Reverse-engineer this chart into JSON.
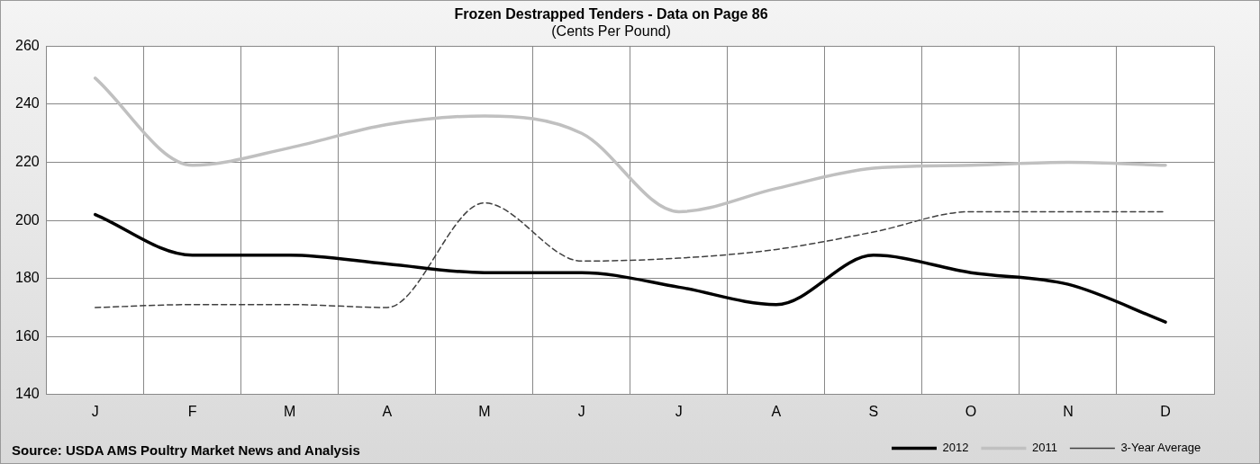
{
  "chart_data": {
    "type": "line",
    "title": "Frozen Destrapped Tenders - Data on Page 86",
    "subtitle": "(Cents Per Pound)",
    "categories": [
      "J",
      "F",
      "M",
      "A",
      "M",
      "J",
      "J",
      "A",
      "S",
      "O",
      "N",
      "D"
    ],
    "series": [
      {
        "name": "2012",
        "color": "#000000",
        "values": [
          202,
          188,
          188,
          185,
          182,
          182,
          177,
          171,
          188,
          182,
          178,
          165
        ]
      },
      {
        "name": "2011",
        "color": "#c0c0c0",
        "values": [
          249,
          219,
          225,
          233,
          236,
          230,
          203,
          211,
          218,
          219,
          220,
          219
        ]
      },
      {
        "name": "3-Year Average",
        "color": "#404040",
        "line_style": "dashed",
        "values": [
          170,
          171,
          171,
          170,
          206,
          186,
          187,
          190,
          196,
          203,
          203,
          203
        ]
      }
    ],
    "ylim": [
      140,
      260
    ],
    "yticks": [
      140,
      160,
      180,
      200,
      220,
      240,
      260
    ],
    "grid": true,
    "legend": "bottom right",
    "marker": "none",
    "line_style": "solid",
    "annotations": [
      "Source: USDA AMS Poultry Market News and Analysis"
    ]
  }
}
